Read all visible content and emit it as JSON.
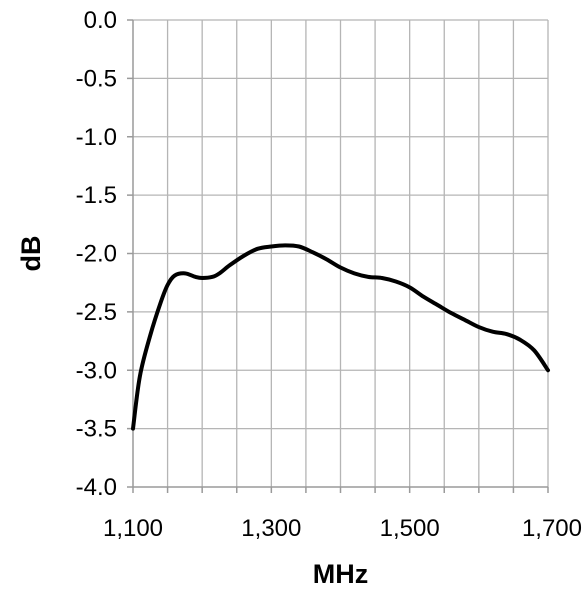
{
  "chart_data": {
    "type": "line",
    "xlabel": "MHz",
    "ylabel": "dB",
    "xlim": [
      1100,
      1700
    ],
    "ylim": [
      -4.0,
      0.0
    ],
    "x_tick_labels": [
      "1,100",
      "1,300",
      "1,500",
      "1,700"
    ],
    "x_tick_values": [
      1100,
      1300,
      1500,
      1700
    ],
    "y_tick_labels": [
      "0.0",
      "-0.5",
      "-1.0",
      "-1.5",
      "-2.0",
      "-2.5",
      "-3.0",
      "-3.5",
      "-4.0"
    ],
    "y_tick_values": [
      0.0,
      -0.5,
      -1.0,
      -1.5,
      -2.0,
      -2.5,
      -3.0,
      -3.5,
      -4.0
    ],
    "x_grid_step": 50,
    "grid": true,
    "series": [
      {
        "color": "#000000",
        "x": [
          1100,
          1110,
          1125,
          1140,
          1150,
          1160,
          1175,
          1190,
          1200,
          1215,
          1225,
          1240,
          1260,
          1280,
          1300,
          1320,
          1340,
          1360,
          1380,
          1400,
          1420,
          1440,
          1460,
          1480,
          1500,
          1520,
          1540,
          1560,
          1580,
          1600,
          1620,
          1640,
          1660,
          1680,
          1700
        ],
        "y": [
          -3.5,
          -3.05,
          -2.7,
          -2.42,
          -2.27,
          -2.19,
          -2.17,
          -2.2,
          -2.21,
          -2.2,
          -2.17,
          -2.1,
          -2.02,
          -1.96,
          -1.94,
          -1.93,
          -1.94,
          -1.99,
          -2.05,
          -2.12,
          -2.17,
          -2.2,
          -2.21,
          -2.24,
          -2.29,
          -2.37,
          -2.44,
          -2.51,
          -2.57,
          -2.63,
          -2.67,
          -2.69,
          -2.74,
          -2.83,
          -3.0
        ]
      }
    ]
  }
}
